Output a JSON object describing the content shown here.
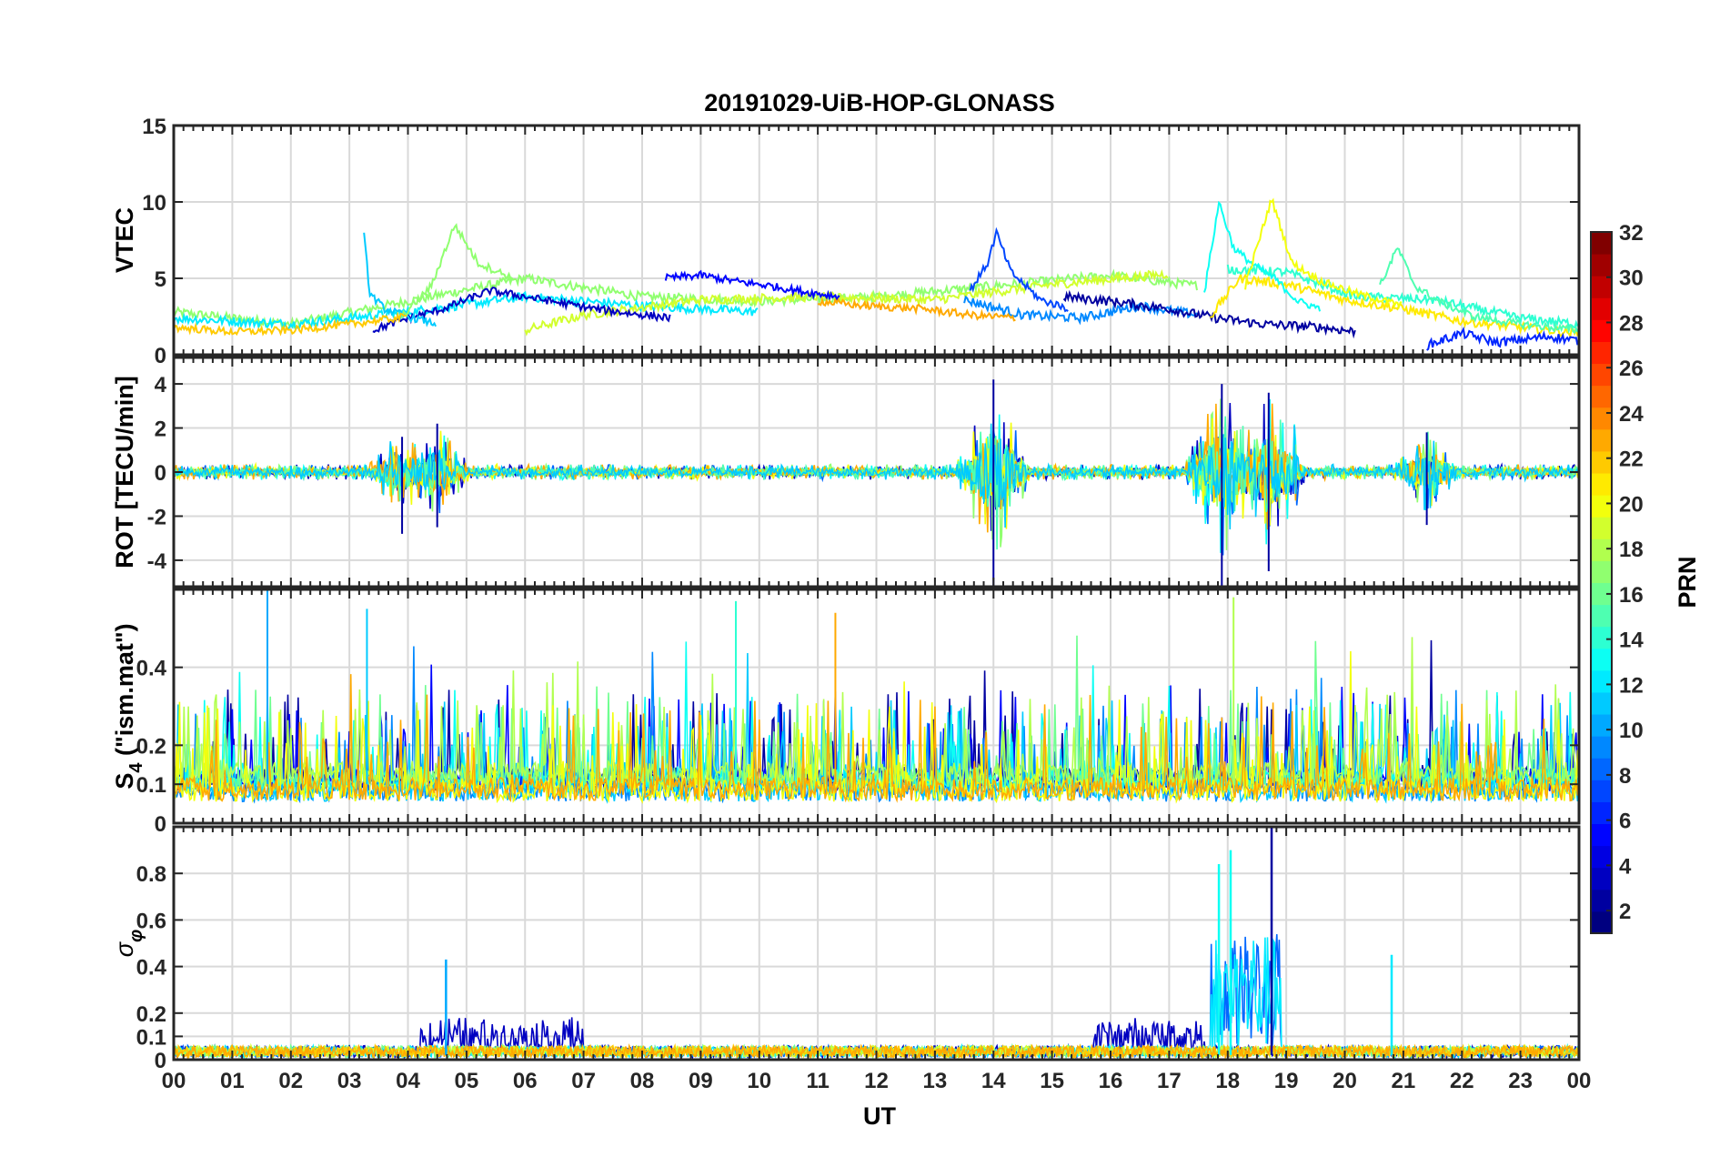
{
  "figure": {
    "title": "20191029-UiB-HOP-GLONASS",
    "xlabel": "UT",
    "x_ticks": [
      "00",
      "01",
      "02",
      "03",
      "04",
      "05",
      "06",
      "07",
      "08",
      "09",
      "10",
      "11",
      "12",
      "13",
      "14",
      "15",
      "16",
      "17",
      "18",
      "19",
      "20",
      "21",
      "22",
      "23",
      "00"
    ]
  },
  "colorbar": {
    "label": "PRN",
    "ticks": [
      "2",
      "4",
      "6",
      "8",
      "10",
      "12",
      "14",
      "16",
      "18",
      "20",
      "22",
      "24",
      "26",
      "28",
      "30",
      "32"
    ],
    "range": [
      1,
      32
    ],
    "colormap": "jet"
  },
  "chart_data": [
    {
      "type": "line",
      "panel": "vtec",
      "ylabel": "VTEC",
      "ylim": [
        0,
        15
      ],
      "yticks": [
        "0",
        "5",
        "10",
        "15"
      ],
      "ytick_values": [
        0,
        5,
        10,
        15
      ],
      "grid": true,
      "x_range_hours": [
        0,
        24
      ],
      "series": [
        {
          "prn": 3,
          "x": [
            3.4,
            4.0,
            4.6,
            5.0,
            5.4,
            6.0,
            6.6,
            7.2,
            7.8,
            8.5
          ],
          "y": [
            1.6,
            2.4,
            3.0,
            3.6,
            4.2,
            3.8,
            3.4,
            3.0,
            2.7,
            2.4
          ]
        },
        {
          "prn": 11,
          "x": [
            3.25,
            3.35,
            3.6,
            4.0,
            4.5
          ],
          "y": [
            7.8,
            4.0,
            3.0,
            2.5,
            2.0
          ]
        },
        {
          "prn": 5,
          "x": [
            8.4,
            9.0,
            9.6,
            10.2,
            10.8,
            11.4
          ],
          "y": [
            5.0,
            5.2,
            4.8,
            4.5,
            4.1,
            3.8
          ]
        },
        {
          "prn": 7,
          "x": [
            13.6,
            13.9,
            14.05,
            14.3,
            14.8,
            15.3
          ],
          "y": [
            4.2,
            6.0,
            8.0,
            5.4,
            3.6,
            3.0
          ]
        },
        {
          "prn": 13,
          "x": [
            17.6,
            17.85,
            18.1,
            18.4,
            18.8,
            19.2,
            19.6
          ],
          "y": [
            4.0,
            10.0,
            7.0,
            6.0,
            5.0,
            3.5,
            3.0
          ]
        },
        {
          "prn": 20,
          "x": [
            18.3,
            18.75,
            19.1,
            19.6,
            20.2,
            21.0
          ],
          "y": [
            4.5,
            10.2,
            6.0,
            4.8,
            4.0,
            3.2
          ]
        },
        {
          "prn": 17,
          "x": [
            3.9,
            4.4,
            4.8,
            5.2,
            5.8
          ],
          "y": [
            2.5,
            4.5,
            8.5,
            6.0,
            5.0
          ]
        },
        {
          "prn": 15,
          "x": [
            20.6,
            20.9,
            21.2,
            21.6,
            22.2,
            23.0,
            24.0
          ],
          "y": [
            4.5,
            7.0,
            4.5,
            3.5,
            2.5,
            2.0,
            1.6
          ]
        },
        {
          "prn": 22,
          "x": [
            0.0,
            1.0,
            2.0,
            3.0,
            4.0
          ],
          "y": [
            1.8,
            1.5,
            1.6,
            2.0,
            2.5
          ]
        },
        {
          "prn": 23,
          "x": [
            11.0,
            11.8,
            12.8,
            13.6,
            14.4
          ],
          "y": [
            3.5,
            3.2,
            3.0,
            2.6,
            2.4
          ]
        }
      ]
    },
    {
      "type": "line",
      "panel": "rot",
      "ylabel": "ROT [TECU/min]",
      "ylim": [
        -5.2,
        5.2
      ],
      "yticks": [
        "-4",
        "-2",
        "0",
        "2",
        "4"
      ],
      "ytick_values": [
        -4,
        -2,
        0,
        2,
        4
      ],
      "grid": true,
      "x_range_hours": [
        0,
        24
      ],
      "bursts": [
        {
          "x": 3.9,
          "min": -2.8,
          "max": 1.6
        },
        {
          "x": 4.5,
          "min": -2.5,
          "max": 2.2
        },
        {
          "x": 14.0,
          "min": -5.2,
          "max": 4.2
        },
        {
          "x": 17.9,
          "min": -5.2,
          "max": 4.0
        },
        {
          "x": 18.7,
          "min": -4.5,
          "max": 3.6
        },
        {
          "x": 21.4,
          "min": -2.4,
          "max": 1.8
        }
      ]
    },
    {
      "type": "line",
      "panel": "s4",
      "ylabel": "S_4 (\"ism.mat\")",
      "ylabel_main": "S",
      "ylabel_sub": "4",
      "ylabel_rest": " (\"ism.mat\")",
      "ylim": [
        0,
        0.6
      ],
      "yticks": [
        "0",
        "0.1",
        "0.2",
        "0.4"
      ],
      "ytick_values": [
        0,
        0.1,
        0.2,
        0.4
      ],
      "grid": true,
      "x_range_hours": [
        0,
        24
      ],
      "peaks": [
        {
          "x": 1.6,
          "y": 0.6
        },
        {
          "x": 3.3,
          "y": 0.55
        },
        {
          "x": 9.6,
          "y": 0.57
        },
        {
          "x": 11.3,
          "y": 0.54
        },
        {
          "x": 18.1,
          "y": 0.58
        }
      ]
    },
    {
      "type": "line",
      "panel": "sigma_phi",
      "ylabel": "σ_φ",
      "ylabel_main": "σ",
      "ylabel_sub": "φ",
      "ylim": [
        0,
        1.0
      ],
      "yticks": [
        "0",
        "0.1",
        "0.2",
        "0.4",
        "0.6",
        "0.8"
      ],
      "ytick_values": [
        0,
        0.1,
        0.2,
        0.4,
        0.6,
        0.8
      ],
      "grid": true,
      "x_range_hours": [
        0,
        24
      ],
      "peaks": [
        {
          "x": 4.65,
          "y": 0.43
        },
        {
          "x": 17.85,
          "y": 0.84
        },
        {
          "x": 18.05,
          "y": 0.9
        },
        {
          "x": 18.75,
          "y": 1.0
        },
        {
          "x": 20.8,
          "y": 0.45
        }
      ]
    }
  ]
}
